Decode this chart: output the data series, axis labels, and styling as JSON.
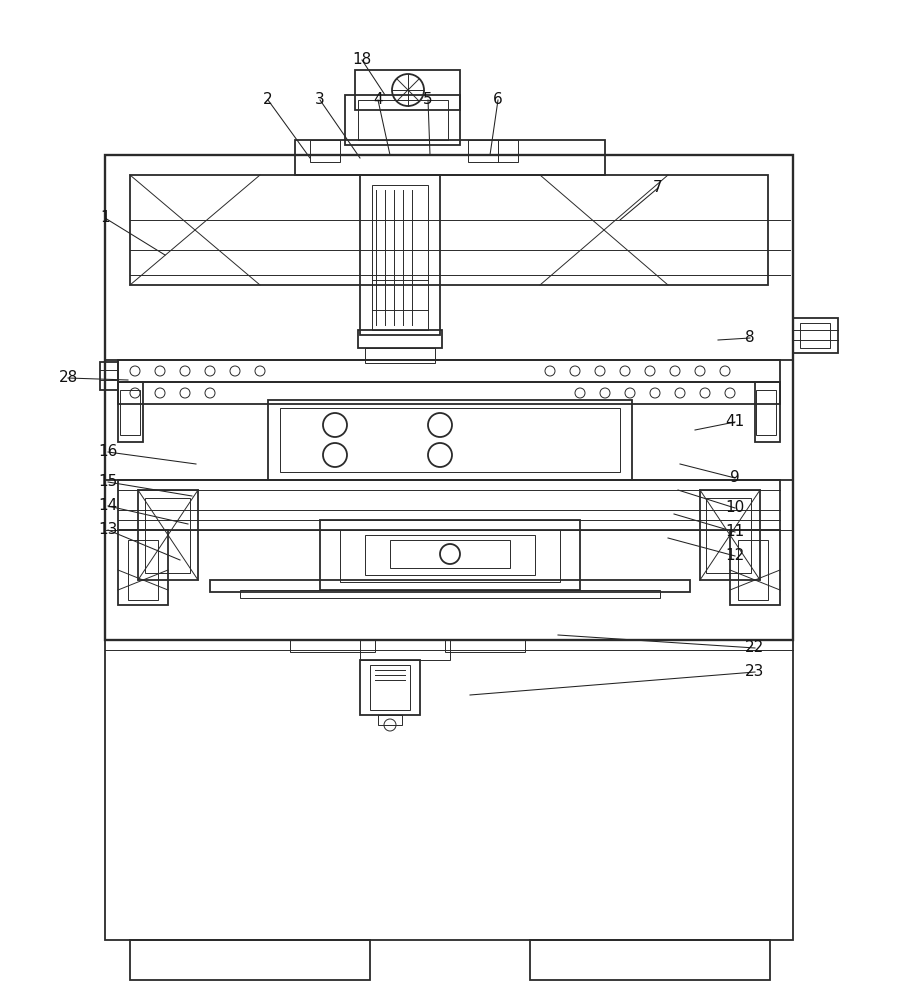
{
  "bg_color": "#ffffff",
  "line_color": "#2a2a2a",
  "lw_main": 1.3,
  "lw_thin": 0.7,
  "lw_med": 1.0,
  "label_fontsize": 11,
  "title": "",
  "annotation_lines": [
    [
      "1",
      105,
      218,
      165,
      255
    ],
    [
      "2",
      268,
      100,
      310,
      158
    ],
    [
      "3",
      320,
      100,
      360,
      158
    ],
    [
      "4",
      378,
      100,
      390,
      155
    ],
    [
      "5",
      428,
      100,
      430,
      155
    ],
    [
      "6",
      498,
      100,
      490,
      155
    ],
    [
      "7",
      658,
      188,
      620,
      220
    ],
    [
      "8",
      750,
      338,
      718,
      340
    ],
    [
      "9",
      735,
      478,
      680,
      464
    ],
    [
      "10",
      735,
      508,
      678,
      490
    ],
    [
      "11",
      735,
      532,
      674,
      514
    ],
    [
      "12",
      735,
      556,
      668,
      538
    ],
    [
      "13",
      108,
      530,
      180,
      560
    ],
    [
      "14",
      108,
      506,
      188,
      524
    ],
    [
      "15",
      108,
      482,
      192,
      496
    ],
    [
      "16",
      108,
      452,
      196,
      464
    ],
    [
      "18",
      362,
      60,
      385,
      95
    ],
    [
      "22",
      755,
      648,
      558,
      635
    ],
    [
      "23",
      755,
      672,
      470,
      695
    ],
    [
      "28",
      68,
      378,
      128,
      380
    ],
    [
      "41",
      735,
      422,
      695,
      430
    ]
  ]
}
